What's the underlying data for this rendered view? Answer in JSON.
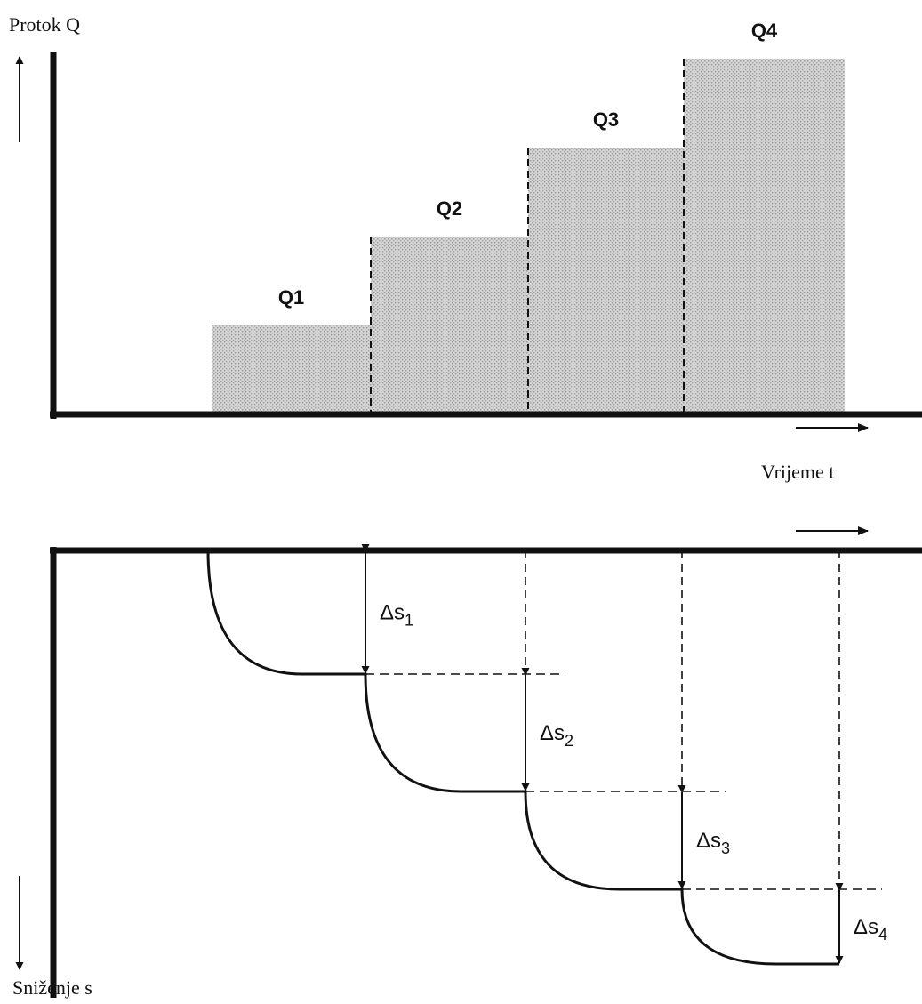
{
  "top_chart": {
    "y_axis_label": "Protok Q",
    "x_axis_label": "Vrijeme t",
    "steps": [
      {
        "label": "Q1",
        "value": 1
      },
      {
        "label": "Q2",
        "value": 2
      },
      {
        "label": "Q3",
        "value": 3
      },
      {
        "label": "Q4",
        "value": 4
      }
    ],
    "fill_color": "#cfcfcf"
  },
  "bottom_chart": {
    "y_axis_label": "Sniženje s",
    "drawdowns": [
      {
        "symbol": "Δs",
        "index": "1"
      },
      {
        "symbol": "Δs",
        "index": "2"
      },
      {
        "symbol": "Δs",
        "index": "3"
      },
      {
        "symbol": "Δs",
        "index": "4"
      }
    ]
  }
}
